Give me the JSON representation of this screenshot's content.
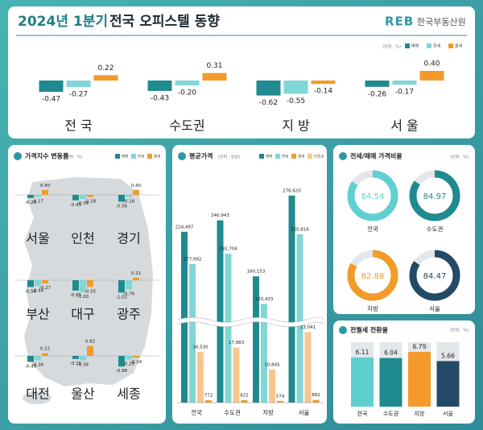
{
  "header": {
    "title_highlight": "2024년 1분기",
    "title": "전국 오피스텔 동향",
    "logo_mark": "REB",
    "logo_text": "한국부동산원"
  },
  "chart_data": [
    {
      "type": "bar",
      "unit": "(단위 : %)",
      "categories": [
        "전 국",
        "수도권",
        "지 방",
        "서 울"
      ],
      "ylim": [
        -1,
        1
      ],
      "series": [
        {
          "name": "매매",
          "color": "#1f8a8f",
          "values": [
            -0.47,
            -0.43,
            -0.62,
            -0.26
          ],
          "value_labels": [
            "-0.47",
            "-0.43",
            "-0.62",
            "-0.26"
          ]
        },
        {
          "name": "전세",
          "color": "#82d6d6",
          "values": [
            -0.27,
            -0.2,
            -0.55,
            -0.17
          ],
          "value_labels": [
            "-0.27",
            "-0.20",
            "-0.55",
            "-0.17"
          ]
        },
        {
          "name": "월세",
          "color": "#f39a2b",
          "values": [
            0.22,
            0.31,
            -0.14,
            0.4
          ],
          "value_labels": [
            "0.22",
            "0.31",
            "-0.14",
            "0.40"
          ]
        }
      ]
    },
    {
      "type": "bar",
      "title": "가격지수 변동률",
      "unit": "(단위 : %)",
      "categories": [
        "서울",
        "인천",
        "경기",
        "부산",
        "대구",
        "광주",
        "대전",
        "울산",
        "세종"
      ],
      "ylim": [
        -1.5,
        1.5
      ],
      "series": [
        {
          "name": "매매",
          "color": "#1f8a8f",
          "values": [
            -0.26,
            -0.45,
            -0.56,
            -0.56,
            -0.85,
            -1.02,
            -0.49,
            -0.25,
            -0.88
          ],
          "value_labels": [
            "-0.26",
            "-0.45",
            "-0.56",
            "-0.56",
            "-0.85",
            "-1.02",
            "-0.49",
            "-0.25",
            "-0.88"
          ]
        },
        {
          "name": "전세",
          "color": "#82d6d6",
          "values": [
            -0.17,
            -0.34,
            -0.18,
            -0.49,
            -1.0,
            -0.76,
            -0.36,
            -0.36,
            -0.29
          ],
          "value_labels": [
            "-0.17",
            "-0.34",
            "-0.18",
            "-0.49",
            "-1.00",
            "-0.76",
            "-0.36",
            "-0.36",
            "-0.29"
          ]
        },
        {
          "name": "월세",
          "color": "#f39a2b",
          "values": [
            0.4,
            -0.18,
            0.4,
            -0.27,
            -0.55,
            0.21,
            0.22,
            0.82,
            -0.14
          ],
          "value_labels": [
            "0.40",
            "-0.18",
            "0.40",
            "-0.27",
            "-0.55",
            "0.21",
            "0.22",
            "0.82",
            "-0.14"
          ]
        }
      ]
    },
    {
      "type": "bar",
      "title": "평균가격",
      "unit": "(단위 : 만원)",
      "categories": [
        "전국",
        "수도권",
        "지방",
        "서울"
      ],
      "ylim": [
        0,
        280000
      ],
      "axis_break": [
        25000,
        100000
      ],
      "series": [
        {
          "name": "매매",
          "color": "#1f8a8f",
          "values": [
            224497,
            240943,
            160153,
            276620
          ],
          "value_labels": [
            "224,497",
            "240,943",
            "160,153",
            "276,620"
          ]
        },
        {
          "name": "전세",
          "color": "#82d6d6",
          "values": [
            177992,
            192704,
            120433,
            220816
          ],
          "value_labels": [
            "177,992",
            "192,704",
            "120,433",
            "220,816"
          ]
        },
        {
          "name": "월세",
          "color": "#f39a2b",
          "values": [
            772,
            822,
            574,
            892
          ],
          "value_labels": [
            "772",
            "822",
            "574",
            "892"
          ]
        },
        {
          "name": "보증금",
          "color": "#f8c68c",
          "values": [
            16530,
            17983,
            10845,
            23041
          ],
          "value_labels": [
            "16,530",
            "17,983",
            "10,845",
            "23,041"
          ]
        }
      ]
    },
    {
      "type": "donut",
      "title": "전세/매매 가격비율",
      "unit": "(단위 : %)",
      "categories": [
        "전국",
        "수도권",
        "지방",
        "서울"
      ],
      "values": [
        84.54,
        84.97,
        82.88,
        84.47
      ],
      "colors": [
        "#5fd0cf",
        "#1f8a8f",
        "#f39a2b",
        "#234a66"
      ]
    },
    {
      "type": "bar",
      "title": "전월세 전환율",
      "unit": "(단위 : %)",
      "categories": [
        "전국",
        "수도권",
        "지방",
        "서울"
      ],
      "values": [
        6.11,
        6.04,
        6.79,
        5.66
      ],
      "colors": [
        "#5fd0cf",
        "#1f8a8f",
        "#f39a2b",
        "#234a66"
      ],
      "ylim": [
        0,
        8
      ]
    }
  ]
}
